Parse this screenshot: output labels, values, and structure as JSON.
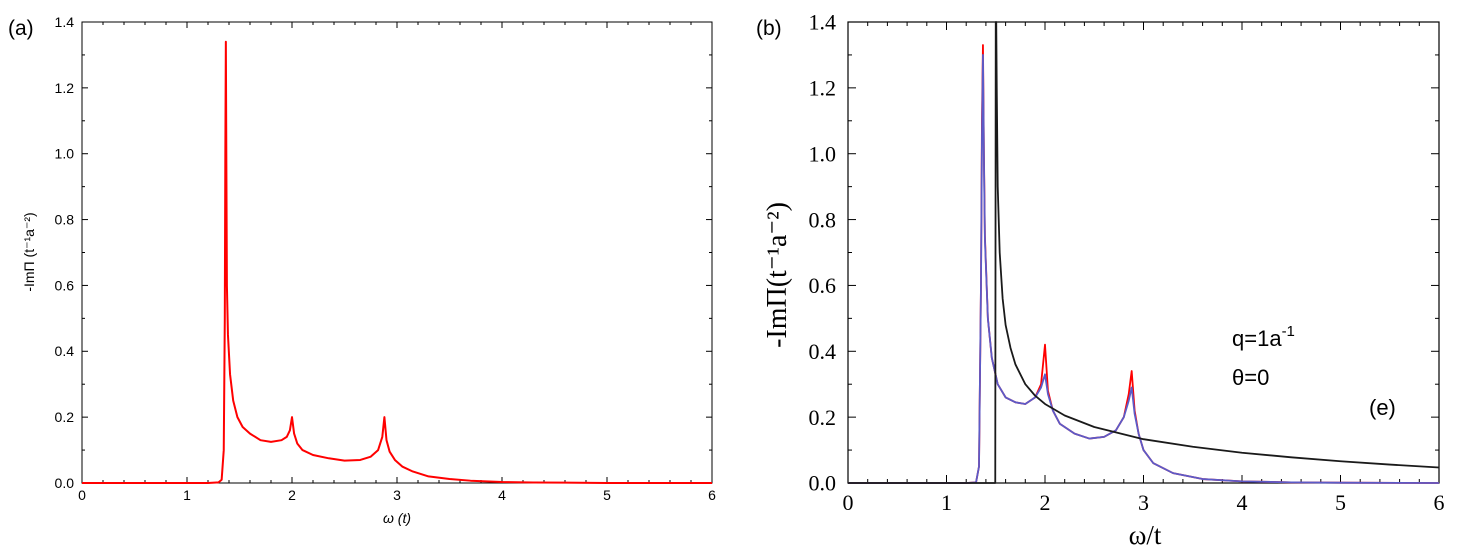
{
  "panels": {
    "a": {
      "label": "(a)"
    },
    "b": {
      "label": "(b)"
    }
  },
  "chart_data": [
    {
      "type": "line",
      "panel": "(a)",
      "xlabel": "ω (t)",
      "ylabel": "-ImΠ (t⁻¹a⁻²)",
      "xlim": [
        0,
        6
      ],
      "ylim": [
        0,
        1.4
      ],
      "xticks": [
        "0",
        "1",
        "2",
        "3",
        "4",
        "5",
        "6"
      ],
      "yticks": [
        "0.0",
        "0.2",
        "0.4",
        "0.6",
        "0.8",
        "1.0",
        "1.2",
        "1.4"
      ],
      "grid": false,
      "series": [
        {
          "color": "#ff0000",
          "x": [
            0,
            0.5,
            1.0,
            1.2,
            1.3,
            1.33,
            1.35,
            1.36,
            1.365,
            1.37,
            1.375,
            1.38,
            1.39,
            1.41,
            1.44,
            1.48,
            1.53,
            1.6,
            1.7,
            1.8,
            1.9,
            1.95,
            1.98,
            2.0,
            2.02,
            2.05,
            2.1,
            2.2,
            2.35,
            2.5,
            2.65,
            2.75,
            2.82,
            2.86,
            2.88,
            2.9,
            2.93,
            2.98,
            3.05,
            3.15,
            3.3,
            3.5,
            3.7,
            4.0,
            4.3,
            4.6,
            5.0,
            6.0
          ],
          "y": [
            0,
            0,
            0,
            0,
            0.002,
            0.01,
            0.1,
            0.5,
            1.0,
            1.34,
            0.95,
            0.6,
            0.45,
            0.33,
            0.25,
            0.2,
            0.17,
            0.15,
            0.13,
            0.125,
            0.13,
            0.14,
            0.16,
            0.2,
            0.15,
            0.12,
            0.1,
            0.085,
            0.075,
            0.068,
            0.07,
            0.08,
            0.1,
            0.14,
            0.2,
            0.13,
            0.095,
            0.07,
            0.05,
            0.035,
            0.02,
            0.012,
            0.007,
            0.003,
            0.0015,
            0.001,
            0,
            0
          ]
        }
      ]
    },
    {
      "type": "line",
      "panel": "(b)",
      "xlabel": "ω/t",
      "ylabel": "-ImΠ(t⁻¹a⁻²)",
      "xlim": [
        0,
        6
      ],
      "ylim": [
        0,
        1.4
      ],
      "xticks": [
        "0",
        "1",
        "2",
        "3",
        "4",
        "5",
        "6"
      ],
      "yticks": [
        "0.0",
        "0.2",
        "0.4",
        "0.6",
        "0.8",
        "1.0",
        "1.2",
        "1.4"
      ],
      "grid": false,
      "annotations": {
        "q_base": "q=1a",
        "q_exp": "-1",
        "theta": "θ=0",
        "tag": "(e)"
      },
      "series": [
        {
          "color": "#ff0000",
          "x": [
            0,
            1.0,
            1.2,
            1.3,
            1.33,
            1.35,
            1.36,
            1.37,
            1.38,
            1.39,
            1.42,
            1.46,
            1.52,
            1.6,
            1.7,
            1.8,
            1.9,
            1.96,
            2.0,
            2.03,
            2.08,
            2.15,
            2.3,
            2.45,
            2.6,
            2.72,
            2.8,
            2.85,
            2.88,
            2.91,
            2.95,
            3.0,
            3.1,
            3.3,
            3.6,
            4.0,
            4.5,
            5.0,
            6.0
          ],
          "y": [
            0,
            0,
            0,
            0.002,
            0.05,
            0.6,
            1.1,
            1.33,
            1.0,
            0.75,
            0.5,
            0.38,
            0.3,
            0.26,
            0.245,
            0.24,
            0.26,
            0.3,
            0.42,
            0.28,
            0.22,
            0.18,
            0.15,
            0.135,
            0.14,
            0.16,
            0.2,
            0.27,
            0.34,
            0.22,
            0.15,
            0.1,
            0.06,
            0.03,
            0.012,
            0.005,
            0.002,
            0.001,
            0
          ]
        },
        {
          "color": "#5b5bc8",
          "x": [
            0,
            1.0,
            1.2,
            1.3,
            1.33,
            1.35,
            1.36,
            1.37,
            1.38,
            1.39,
            1.42,
            1.46,
            1.52,
            1.6,
            1.7,
            1.8,
            1.9,
            1.96,
            2.0,
            2.03,
            2.08,
            2.15,
            2.3,
            2.45,
            2.6,
            2.72,
            2.8,
            2.85,
            2.88,
            2.91,
            2.95,
            3.0,
            3.1,
            3.3,
            3.6,
            4.0,
            4.5,
            5.0,
            6.0
          ],
          "y": [
            0,
            0,
            0,
            0.002,
            0.05,
            0.6,
            1.05,
            1.3,
            0.98,
            0.74,
            0.5,
            0.38,
            0.3,
            0.26,
            0.245,
            0.24,
            0.26,
            0.29,
            0.33,
            0.27,
            0.22,
            0.18,
            0.15,
            0.135,
            0.14,
            0.16,
            0.2,
            0.25,
            0.29,
            0.21,
            0.15,
            0.1,
            0.06,
            0.03,
            0.012,
            0.005,
            0.002,
            0.001,
            0
          ]
        },
        {
          "color": "#1a1a1a",
          "x": [
            0,
            1.49,
            1.495,
            1.5,
            1.505,
            1.51,
            1.52,
            1.54,
            1.57,
            1.6,
            1.65,
            1.7,
            1.8,
            1.9,
            2.0,
            2.2,
            2.5,
            3.0,
            3.5,
            4.0,
            4.5,
            5.0,
            5.5,
            6.0
          ],
          "y": [
            0,
            0,
            0,
            1.4,
            1.4,
            1.2,
            0.9,
            0.7,
            0.56,
            0.48,
            0.41,
            0.36,
            0.3,
            0.265,
            0.24,
            0.205,
            0.17,
            0.133,
            0.11,
            0.092,
            0.078,
            0.066,
            0.056,
            0.047
          ]
        }
      ]
    }
  ]
}
